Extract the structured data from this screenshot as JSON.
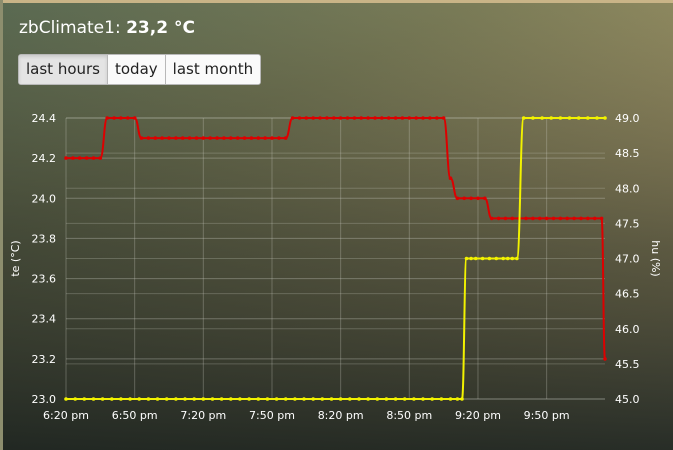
{
  "header": {
    "name": "zbClimate1:",
    "value": "23,2 °C"
  },
  "buttons": [
    {
      "label": "last hours",
      "active": true
    },
    {
      "label": "today",
      "active": false
    },
    {
      "label": "last month",
      "active": false
    }
  ],
  "colors": {
    "temperature": "#dd0000",
    "humidity": "#f2f200",
    "grid": "#cfd2c8",
    "text": "#ffffff"
  },
  "chart_data": {
    "type": "line",
    "xlabel": "",
    "x_ticks": [
      "6:20 pm",
      "6:50 pm",
      "7:20 pm",
      "7:50 pm",
      "8:20 pm",
      "8:50 pm",
      "9:20 pm",
      "9:50 pm"
    ],
    "y_left": {
      "label": "te (°C)",
      "ylim": [
        23.0,
        24.4
      ],
      "ticks": [
        "23.0",
        "23.2",
        "23.4",
        "23.6",
        "23.8",
        "24.0",
        "24.2",
        "24.4"
      ]
    },
    "y_right": {
      "label": "hu (%)",
      "ylim": [
        45.0,
        49.0
      ],
      "ticks": [
        "45.0",
        "45.5",
        "46.0",
        "46.5",
        "47.0",
        "47.5",
        "48.0",
        "48.5",
        "49.0"
      ]
    },
    "grid": true,
    "series": [
      {
        "name": "te (°C)",
        "axis": "left",
        "color": "#dd0000",
        "x_minutes": [
          0,
          3,
          6,
          9,
          12,
          15,
          18,
          21,
          24,
          27,
          30,
          33,
          36,
          39,
          42,
          45,
          48,
          51,
          54,
          57,
          60,
          63,
          66,
          69,
          72,
          75,
          78,
          81,
          84,
          87,
          90,
          93,
          96,
          99,
          102,
          105,
          108,
          111,
          114,
          117,
          120,
          123,
          126,
          129,
          132,
          135,
          138,
          141,
          144,
          147,
          150,
          153,
          156,
          159,
          162,
          165,
          168,
          171,
          174,
          177,
          180,
          183,
          186,
          189,
          192,
          195,
          198,
          201,
          204,
          207,
          210,
          213,
          216,
          219,
          222,
          225,
          228,
          231,
          234,
          235.5
        ],
        "values": [
          24.2,
          24.2,
          24.2,
          24.2,
          24.2,
          24.2,
          24.4,
          24.4,
          24.4,
          24.4,
          24.4,
          24.3,
          24.3,
          24.3,
          24.3,
          24.3,
          24.3,
          24.3,
          24.3,
          24.3,
          24.3,
          24.3,
          24.3,
          24.3,
          24.3,
          24.3,
          24.3,
          24.3,
          24.3,
          24.3,
          24.3,
          24.3,
          24.3,
          24.4,
          24.4,
          24.4,
          24.4,
          24.4,
          24.4,
          24.4,
          24.4,
          24.4,
          24.4,
          24.4,
          24.4,
          24.4,
          24.4,
          24.4,
          24.4,
          24.4,
          24.4,
          24.4,
          24.4,
          24.4,
          24.4,
          24.4,
          24.1,
          24.0,
          24.0,
          24.0,
          24.0,
          24.0,
          23.9,
          23.9,
          23.9,
          23.9,
          23.9,
          23.9,
          23.9,
          23.9,
          23.9,
          23.9,
          23.9,
          23.9,
          23.9,
          23.9,
          23.9,
          23.9,
          23.9,
          23.2
        ]
      },
      {
        "name": "hu (%)",
        "axis": "right",
        "color": "#f2f200",
        "x_minutes": [
          0,
          4,
          8,
          12,
          16,
          20,
          24,
          28,
          32,
          36,
          40,
          44,
          48,
          52,
          56,
          60,
          64,
          68,
          72,
          76,
          80,
          84,
          88,
          92,
          96,
          100,
          104,
          108,
          112,
          116,
          120,
          124,
          128,
          132,
          136,
          140,
          144,
          148,
          152,
          156,
          160,
          164,
          168,
          171,
          173,
          175,
          177,
          179,
          182,
          185,
          188,
          191,
          193,
          195,
          197,
          200,
          204,
          208,
          212,
          216,
          220,
          224,
          228,
          232,
          235.5
        ],
        "values": [
          45.0,
          45.0,
          45.0,
          45.0,
          45.0,
          45.0,
          45.0,
          45.0,
          45.0,
          45.0,
          45.0,
          45.0,
          45.0,
          45.0,
          45.0,
          45.0,
          45.0,
          45.0,
          45.0,
          45.0,
          45.0,
          45.0,
          45.0,
          45.0,
          45.0,
          45.0,
          45.0,
          45.0,
          45.0,
          45.0,
          45.0,
          45.0,
          45.0,
          45.0,
          45.0,
          45.0,
          45.0,
          45.0,
          45.0,
          45.0,
          45.0,
          45.0,
          45.0,
          45.0,
          45.0,
          47.0,
          47.0,
          47.0,
          47.0,
          47.0,
          47.0,
          47.0,
          47.0,
          47.0,
          47.0,
          49.0,
          49.0,
          49.0,
          49.0,
          49.0,
          49.0,
          49.0,
          49.0,
          49.0,
          49.0
        ]
      }
    ]
  }
}
